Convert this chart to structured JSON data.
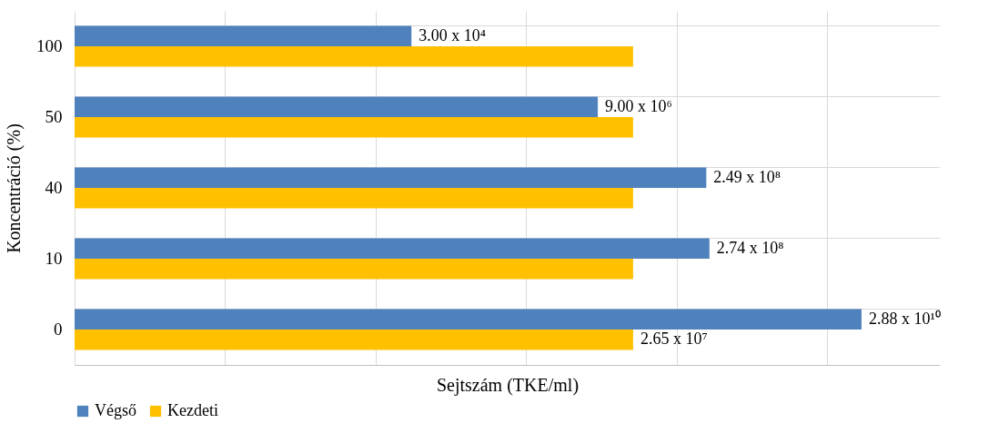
{
  "chart_data": {
    "type": "bar",
    "orientation": "horizontal",
    "log": "x",
    "xlabel": "Sejtszám (TKE/ml)",
    "ylabel": "Koncentráció (%)",
    "categories": [
      "100",
      "50",
      "40",
      "10",
      "0"
    ],
    "series": [
      {
        "name": "Végső",
        "color": "#4f81bd",
        "values": [
          30000,
          9000000,
          249000000,
          274000000,
          28800000000
        ],
        "value_labels": [
          "3.00 x 10⁴",
          "9.00 x 10⁶",
          "2.49 x 10⁸",
          "2.74 x 10⁸",
          "2.88 x 10¹⁰"
        ]
      },
      {
        "name": "Kezdeti",
        "color": "#ffc000",
        "values": [
          26500000,
          26500000,
          26500000,
          26500000,
          26500000
        ],
        "value_labels": [
          null,
          null,
          null,
          null,
          "2.65 x 10⁷"
        ]
      }
    ],
    "xlim": [
      1,
      316000000000
    ],
    "xticks": [
      {
        "value": 1,
        "label": null
      },
      {
        "value": 100,
        "label": null
      },
      {
        "value": 10000,
        "label": null
      },
      {
        "value": 1000000,
        "label": null
      },
      {
        "value": 100000000,
        "label": null
      },
      {
        "value": 10000000000,
        "label": null
      }
    ],
    "tick_labels": "y",
    "grid": true,
    "legend": "bottom"
  }
}
